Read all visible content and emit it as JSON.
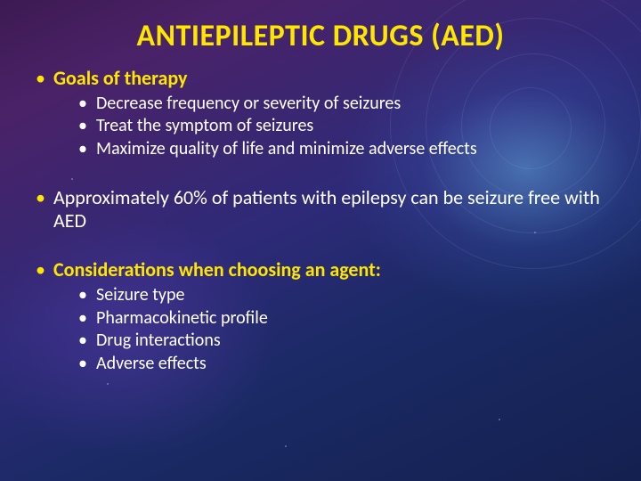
{
  "colors": {
    "title_color": "#ffe600",
    "heading_yellow": "#ffe600",
    "body_text": "#ffffff",
    "bullet_yellow": "#ffe600"
  },
  "title": "ANTIEPILEPTIC DRUGS (AED)",
  "bullets": [
    {
      "text": "Goals of therapy",
      "bold": true,
      "color_key": "heading_yellow",
      "bullet_color_key": "bullet_yellow",
      "sub": [
        "Decrease frequency or severity of seizures",
        "Treat the symptom of seizures",
        "Maximize quality of life and minimize adverse effects"
      ]
    },
    {
      "text": "Approximately 60% of patients with epilepsy can be seizure free with AED",
      "bold": false,
      "color_key": "body_text",
      "bullet_color_key": "bullet_yellow",
      "extra_gap": true,
      "sub": []
    },
    {
      "text": "Considerations when choosing an agent:",
      "bold": true,
      "color_key": "heading_yellow",
      "bullet_color_key": "bullet_yellow",
      "extra_gap": true,
      "sub": [
        "Seizure type",
        "Pharmacokinetic profile",
        "Drug interactions",
        "Adverse effects"
      ]
    }
  ]
}
